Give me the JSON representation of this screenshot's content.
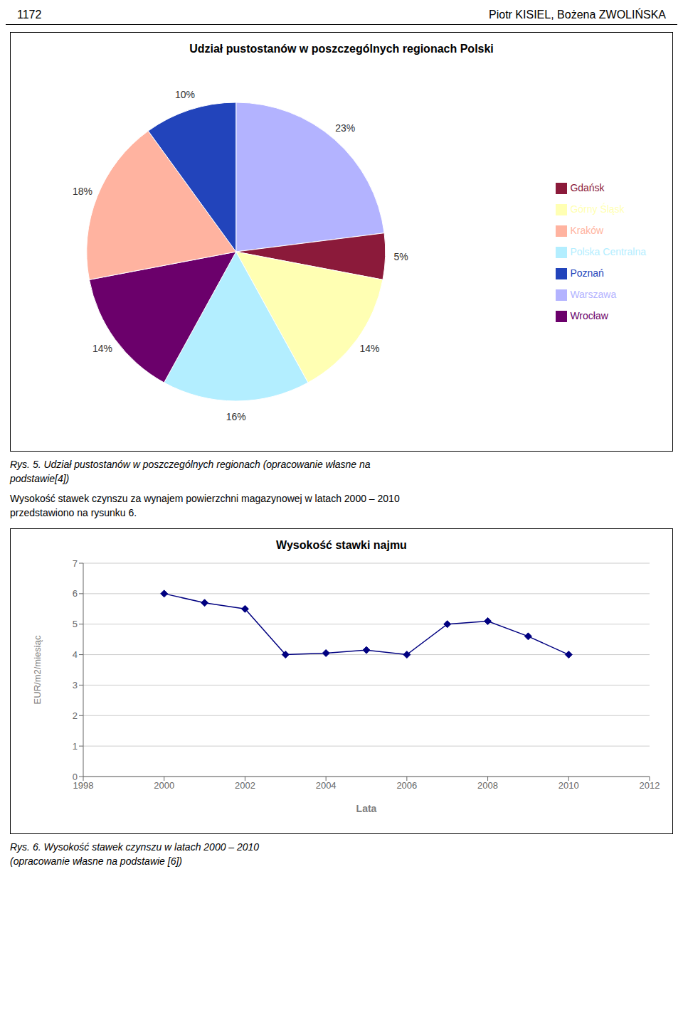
{
  "chart_data": [
    {
      "type": "pie",
      "title": "Udział pustostanów w poszczególnych regionach Polski",
      "categories": [
        "Warszawa",
        "Gdańsk",
        "Górny Śląsk",
        "Polska Centralna",
        "Wrocław",
        "Kraków",
        "Poznań"
      ],
      "values": [
        23,
        5,
        14,
        16,
        14,
        18,
        10
      ],
      "value_labels": [
        "23%",
        "5%",
        "14%",
        "16%",
        "14%",
        "18%",
        "10%"
      ],
      "colors": [
        "#b3b3ff",
        "#8b1a3a",
        "#ffffb3",
        "#b3eeff",
        "#6b006b",
        "#ffb3a0",
        "#2244bb"
      ],
      "data_labels": true,
      "legend": "right",
      "annotations": [
        "1172",
        "Piotr KISIEL, Bożena ZWOLIŃSKA",
        "Rys. 5.  Udział pustostanów w poszczególnych regionach (opracowanie własne na",
        "podstawie[4])",
        "Wysokość stawek czynszu za wynajem powierzchni magazynowej w latach 2000 – 2010",
        "przedstawiono na rysunku 6."
      ]
    },
    {
      "type": "line",
      "title": "Wysokość stawki najmu",
      "xlabel": "Lata",
      "ylabel": "EUR/m2/miesiąc",
      "x": [
        2000,
        2001,
        2002,
        2003,
        2004,
        2005,
        2006,
        2007,
        2008,
        2009,
        2010
      ],
      "values": [
        6.0,
        5.7,
        5.5,
        4.0,
        4.05,
        4.15,
        4.0,
        5.0,
        5.1,
        4.6,
        4.0
      ],
      "color": "#000080",
      "marker": "diamond",
      "xlim": [
        1998,
        2012
      ],
      "ylim": [
        0,
        7
      ],
      "xticks": [
        1998,
        2000,
        2002,
        2004,
        2006,
        2008,
        2010,
        2012
      ],
      "yticks": [
        0,
        1,
        2,
        3,
        4,
        5,
        6,
        7
      ],
      "grid": "y",
      "annotations": [
        "Rys. 6.  Wysokość stawek czynszu w latach 2000 – 2010",
        "(opracowanie własne na podstawie [6])"
      ]
    }
  ]
}
